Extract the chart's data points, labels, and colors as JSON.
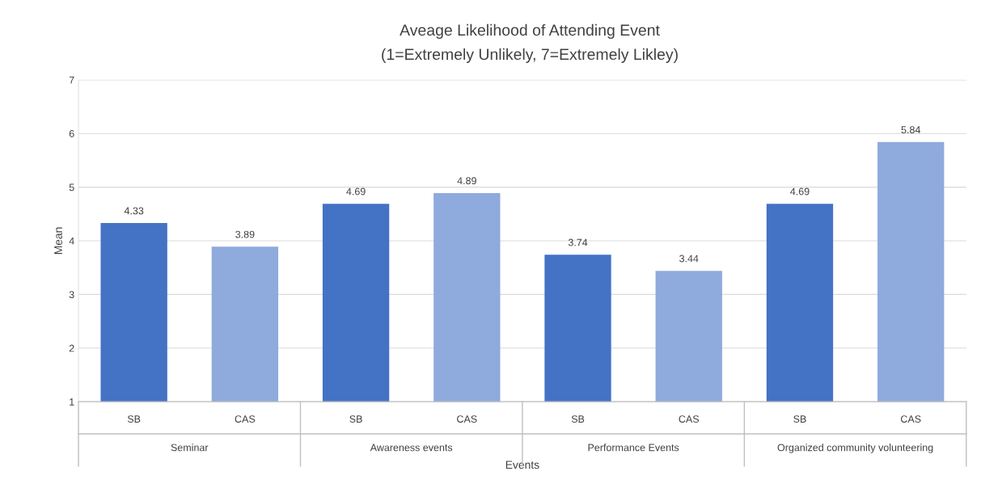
{
  "chart_data": {
    "type": "bar",
    "title": "Aveage Likelihood of Attending Event",
    "subtitle": "(1=Extremely Unlikely, 7=Extremely Likley)",
    "xlabel": "Events",
    "ylabel": "Mean",
    "categories": [
      "Seminar",
      "Awareness events",
      "Performance Events",
      "Organized community volunteering"
    ],
    "series": [
      {
        "name": "SB",
        "color": "#4472c4",
        "values": [
          4.33,
          4.69,
          3.74,
          4.69
        ]
      },
      {
        "name": "CAS",
        "color": "#8faadc",
        "values": [
          3.89,
          4.89,
          3.44,
          5.84
        ]
      }
    ],
    "ylim": [
      1,
      7
    ],
    "yticks": [
      1,
      2,
      3,
      4,
      5,
      6,
      7
    ],
    "grid": "y",
    "data_labels": true
  }
}
